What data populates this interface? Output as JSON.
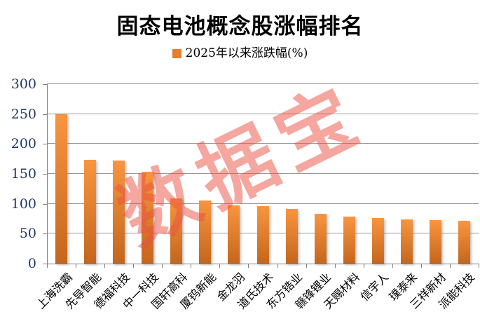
{
  "chart_data": {
    "type": "bar",
    "title": "固态电池概念股涨幅排名",
    "legend": "2025年以来涨跌幅(%)",
    "legend_position": "top",
    "watermark": "数据宝",
    "categories": [
      "上海洗霸",
      "先导智能",
      "德福科技",
      "中一科技",
      "国轩高科",
      "厦钨新能",
      "金龙羽",
      "道氏技术",
      "东方锆业",
      "赣锋锂业",
      "天赐材料",
      "信宇人",
      "璞泰来",
      "三祥新材",
      "派能科技"
    ],
    "values": [
      250,
      173,
      172,
      153,
      109,
      105,
      97,
      96,
      92,
      83,
      79,
      76,
      74,
      73,
      72
    ],
    "xlabel": "",
    "ylabel": "",
    "ylim": [
      0,
      300
    ],
    "yticks": [
      0,
      50,
      100,
      150,
      200,
      250,
      300
    ],
    "grid": true
  },
  "colors": {
    "bar_top": "#F9953F",
    "bar_bottom": "#C4661D",
    "legend_swatch": "#E87E2D",
    "grid": "#989898",
    "axis": "#7F7F7F",
    "y_label": "#1F3864",
    "watermark": "#EA5042"
  }
}
